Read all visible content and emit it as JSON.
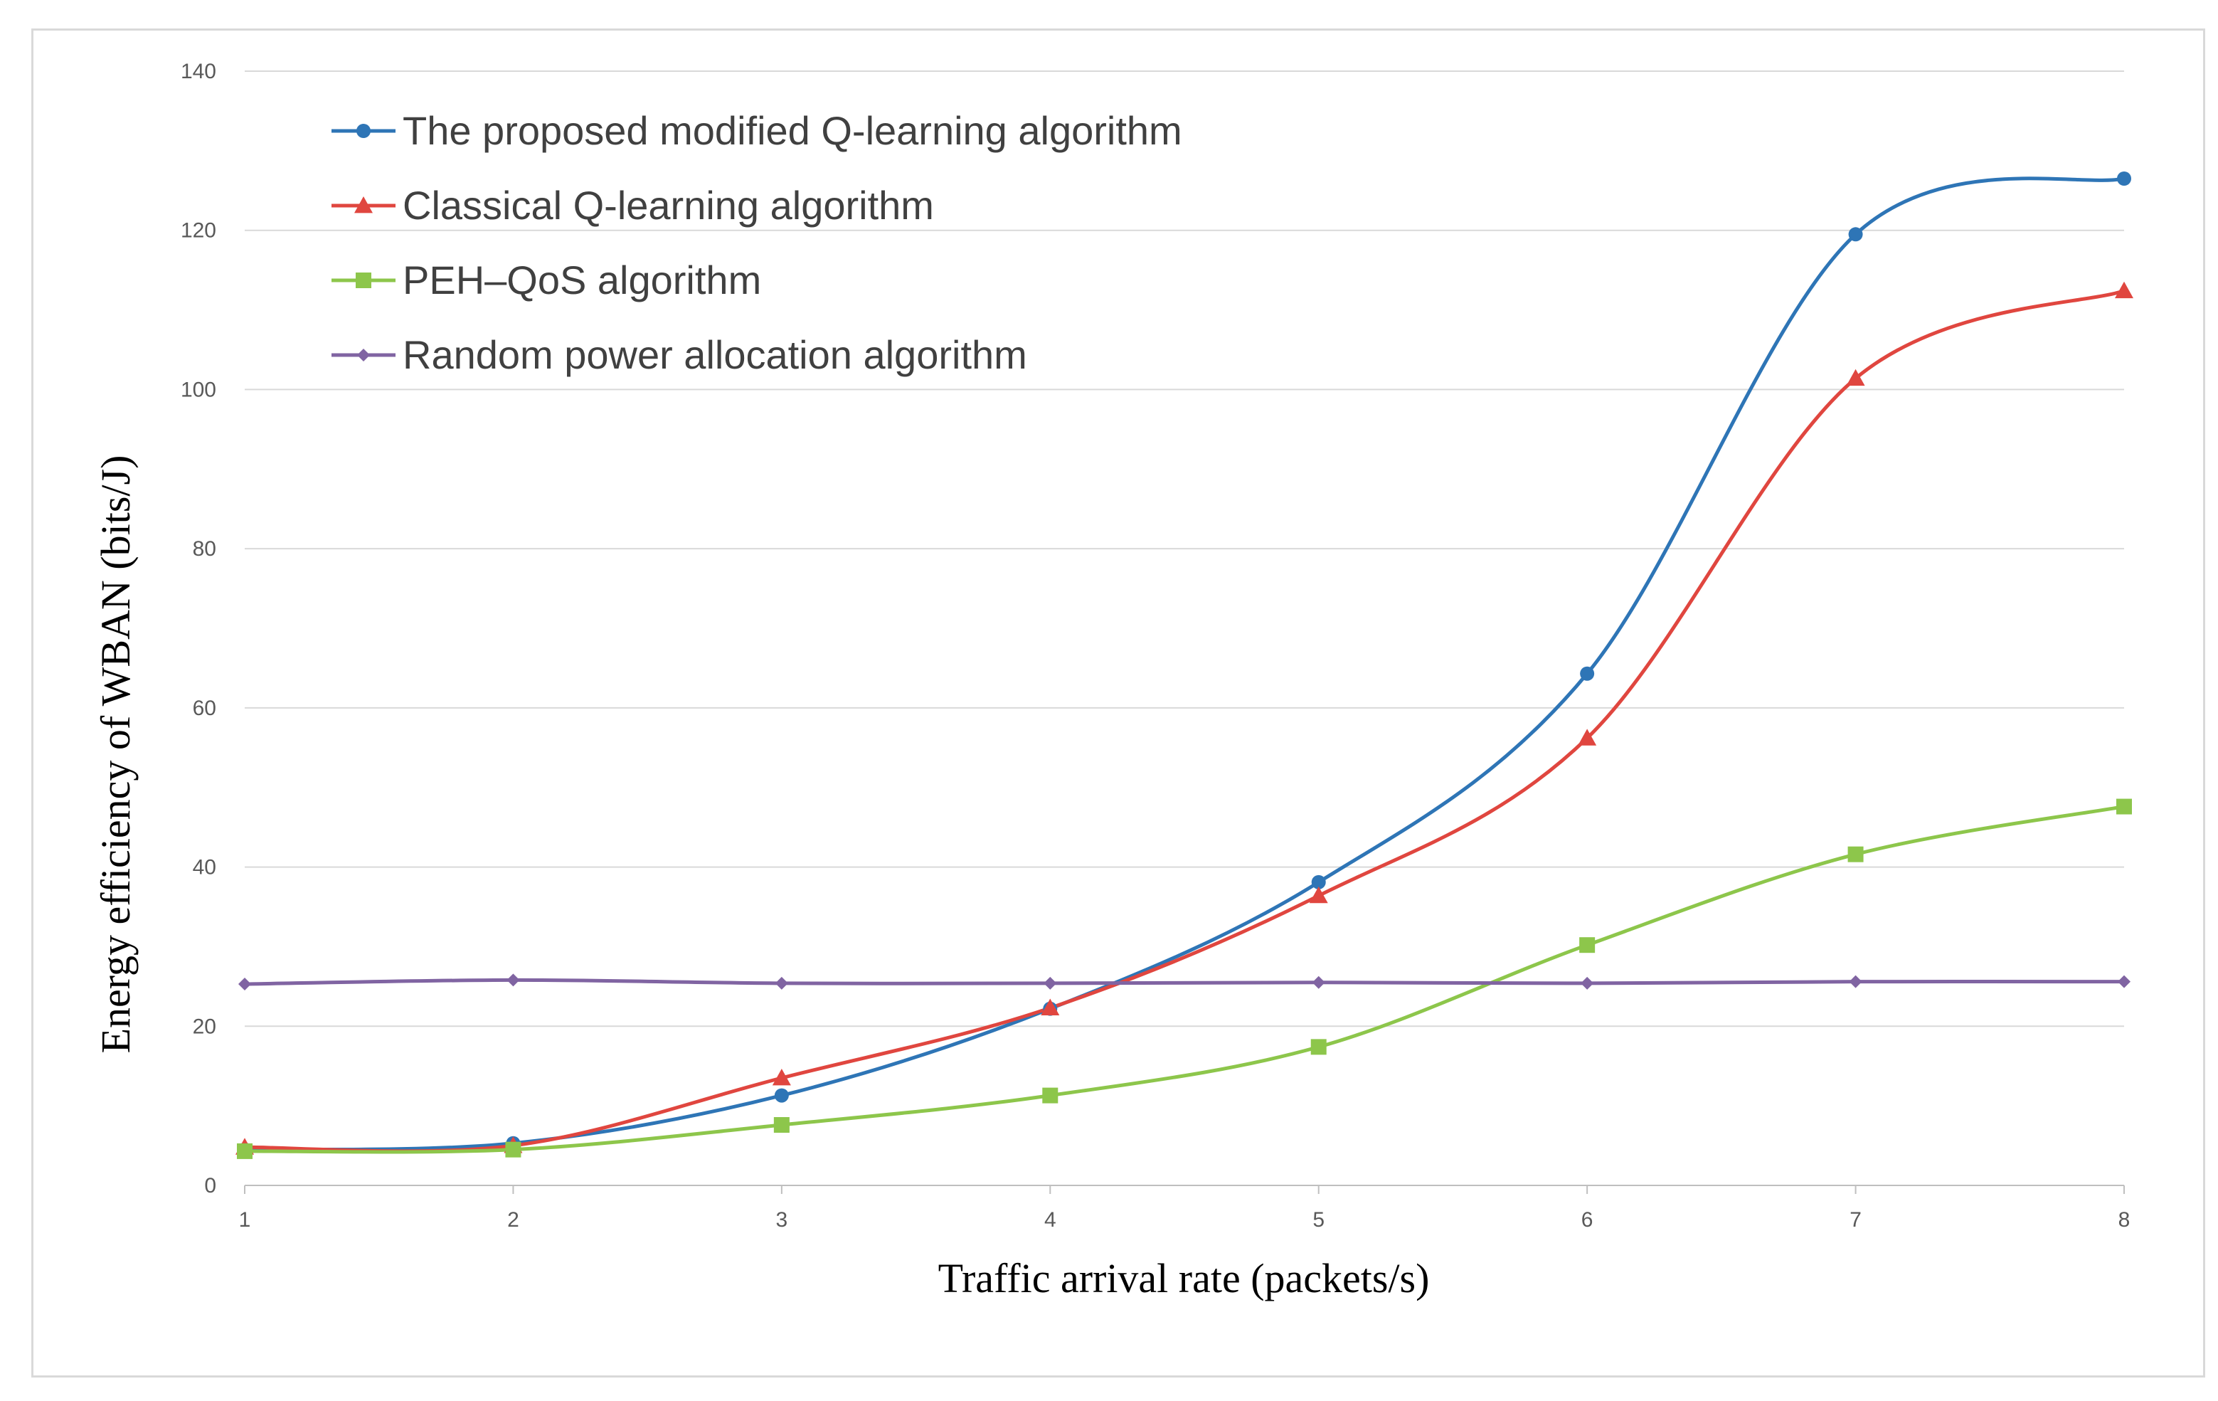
{
  "chart_data": {
    "type": "line",
    "title": "",
    "xlabel": "Traffic arrival  rate (packets/s)",
    "ylabel": "Energy efficiency of WBAN (bits/J)",
    "x": [
      1,
      2,
      3,
      4,
      5,
      6,
      7,
      8
    ],
    "x_tick_labels": [
      "1",
      "2",
      "3",
      "4",
      "5",
      "6",
      "7",
      "8"
    ],
    "y_tick_labels": [
      "0",
      "20",
      "40",
      "60",
      "80",
      "100",
      "120",
      "140"
    ],
    "xlim": [
      1,
      8
    ],
    "ylim": [
      0,
      140
    ],
    "grid": "horizontal",
    "legend_placement": "top-left",
    "smooth": true,
    "series": [
      {
        "name": "The proposed modified Q-learning algorithm",
        "color": "#2e75b6",
        "marker": "circle",
        "values": [
          4.5,
          5.3,
          11.3,
          22.2,
          38.1,
          64.3,
          119.5,
          126.5
        ]
      },
      {
        "name": "Classical Q-learning algorithm",
        "color": "#e0463f",
        "marker": "triangle",
        "values": [
          4.8,
          5.0,
          13.5,
          22.3,
          36.4,
          56.2,
          101.4,
          112.4
        ]
      },
      {
        "name": "PEH–QoS algorithm",
        "color": "#8dc64b",
        "marker": "square",
        "values": [
          4.3,
          4.5,
          7.6,
          11.3,
          17.4,
          30.2,
          41.6,
          47.6
        ]
      },
      {
        "name": "Random power allocation algorithm",
        "color": "#8064a2",
        "marker": "diamond",
        "values": [
          25.3,
          25.8,
          25.4,
          25.4,
          25.5,
          25.4,
          25.6,
          25.6
        ]
      }
    ]
  }
}
